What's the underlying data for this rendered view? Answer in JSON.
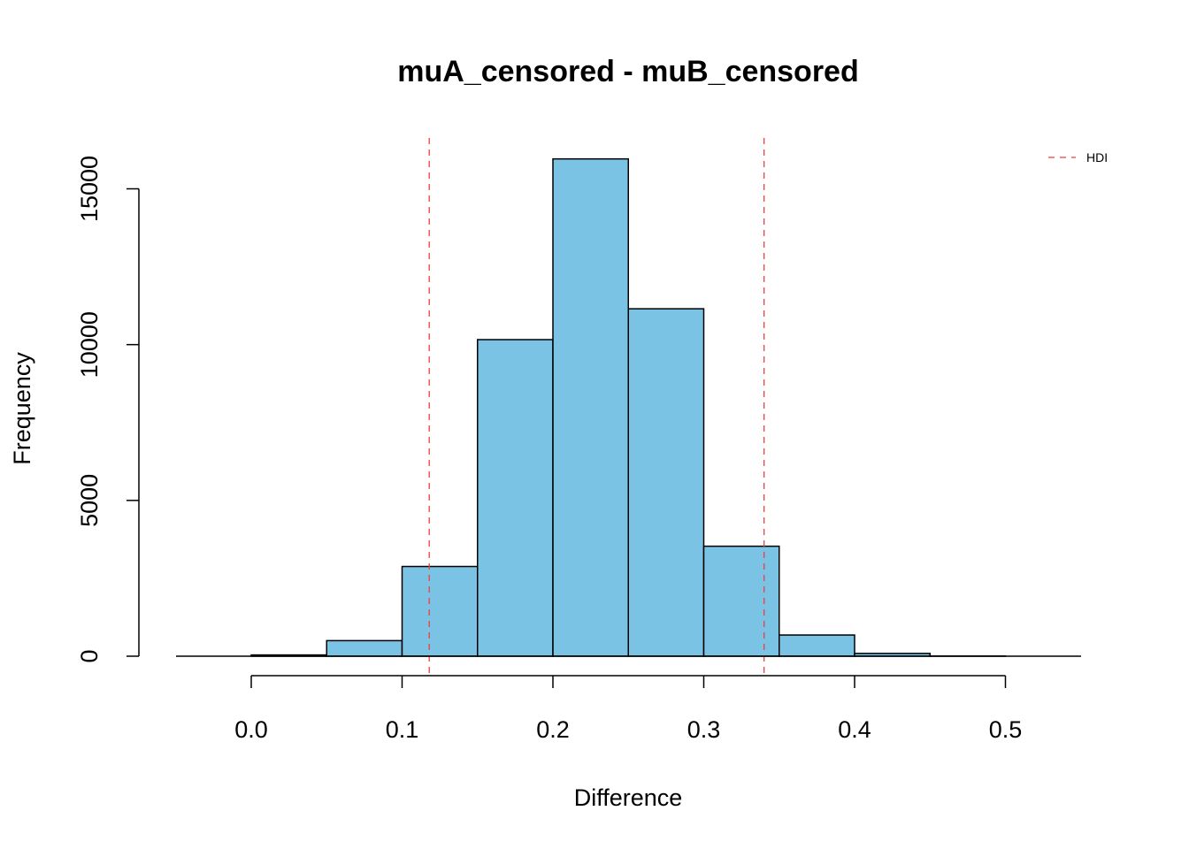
{
  "chart_data": {
    "type": "bar",
    "title": "muA_censored - muB_censored",
    "xlabel": "Difference",
    "ylabel": "Frequency",
    "bins": [
      {
        "from": 0.0,
        "to": 0.05,
        "count": 40
      },
      {
        "from": 0.05,
        "to": 0.1,
        "count": 500
      },
      {
        "from": 0.1,
        "to": 0.15,
        "count": 2880
      },
      {
        "from": 0.15,
        "to": 0.2,
        "count": 10160
      },
      {
        "from": 0.2,
        "to": 0.25,
        "count": 15960
      },
      {
        "from": 0.25,
        "to": 0.3,
        "count": 11150
      },
      {
        "from": 0.3,
        "to": 0.35,
        "count": 3530
      },
      {
        "from": 0.35,
        "to": 0.4,
        "count": 680
      },
      {
        "from": 0.4,
        "to": 0.45,
        "count": 90
      },
      {
        "from": 0.45,
        "to": 0.5,
        "count": 5
      }
    ],
    "xlim": [
      -0.05,
      0.55
    ],
    "ylim": [
      0,
      16000
    ],
    "x_ticks": [
      {
        "value": 0.0,
        "label": "0.0"
      },
      {
        "value": 0.1,
        "label": "0.1"
      },
      {
        "value": 0.2,
        "label": "0.2"
      },
      {
        "value": 0.3,
        "label": "0.3"
      },
      {
        "value": 0.4,
        "label": "0.4"
      },
      {
        "value": 0.5,
        "label": "0.5"
      }
    ],
    "y_ticks": [
      {
        "value": 0,
        "label": "0"
      },
      {
        "value": 5000,
        "label": "5000"
      },
      {
        "value": 10000,
        "label": "10000"
      },
      {
        "value": 15000,
        "label": "15000"
      }
    ],
    "hdi": [
      0.118,
      0.34
    ],
    "legend": {
      "label": "HDI",
      "position": "top-right"
    },
    "colors": {
      "bar_fill": "#7AC3E5",
      "hdi": "#F03E3E"
    },
    "grid": false
  }
}
